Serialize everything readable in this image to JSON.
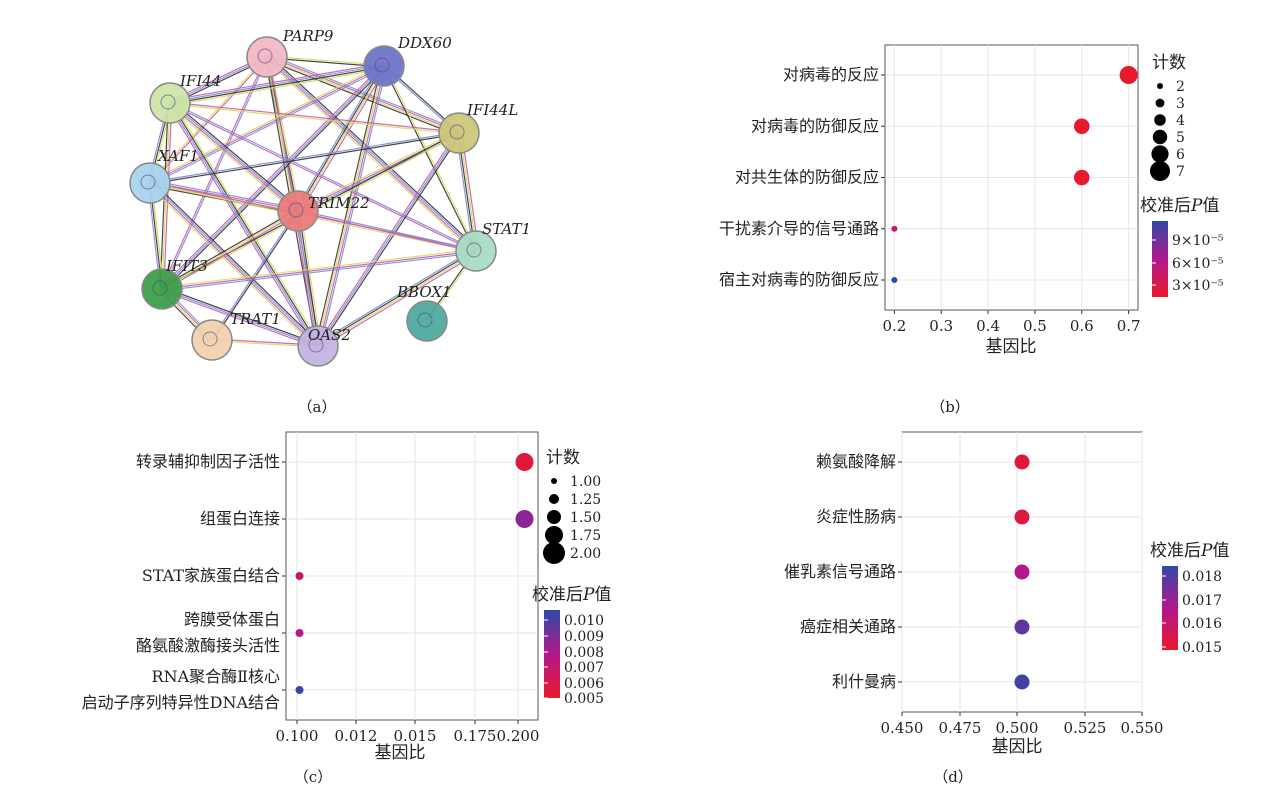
{
  "network": {
    "nodes": [
      {
        "id": "PARP9",
        "color": "#f2b8c6"
      },
      {
        "id": "DDX60",
        "color": "#6f75c9"
      },
      {
        "id": "IFI44",
        "color": "#cde5a8"
      },
      {
        "id": "IFI44L",
        "color": "#cdc77a"
      },
      {
        "id": "XAF1",
        "color": "#a9d3ee"
      },
      {
        "id": "TRIM22",
        "color": "#ec7b7b"
      },
      {
        "id": "STAT1",
        "color": "#a9dcc4"
      },
      {
        "id": "IFIT3",
        "color": "#3e9e4a"
      },
      {
        "id": "BBOX1",
        "color": "#4faaa0"
      },
      {
        "id": "TRAT1",
        "color": "#f3d1b0"
      },
      {
        "id": "OAS2",
        "color": "#c4b3e1"
      }
    ],
    "edges": [
      [
        "PARP9",
        "DDX60"
      ],
      [
        "PARP9",
        "IFI44"
      ],
      [
        "PARP9",
        "IFI44L"
      ],
      [
        "PARP9",
        "XAF1"
      ],
      [
        "PARP9",
        "TRIM22"
      ],
      [
        "PARP9",
        "STAT1"
      ],
      [
        "PARP9",
        "IFIT3"
      ],
      [
        "PARP9",
        "OAS2"
      ],
      [
        "DDX60",
        "IFI44"
      ],
      [
        "DDX60",
        "IFI44L"
      ],
      [
        "DDX60",
        "XAF1"
      ],
      [
        "DDX60",
        "TRIM22"
      ],
      [
        "DDX60",
        "STAT1"
      ],
      [
        "DDX60",
        "IFIT3"
      ],
      [
        "DDX60",
        "OAS2"
      ],
      [
        "IFI44",
        "IFI44L"
      ],
      [
        "IFI44",
        "XAF1"
      ],
      [
        "IFI44",
        "TRIM22"
      ],
      [
        "IFI44",
        "STAT1"
      ],
      [
        "IFI44",
        "IFIT3"
      ],
      [
        "IFI44",
        "OAS2"
      ],
      [
        "IFI44L",
        "XAF1"
      ],
      [
        "IFI44L",
        "TRIM22"
      ],
      [
        "IFI44L",
        "STAT1"
      ],
      [
        "IFI44L",
        "IFIT3"
      ],
      [
        "IFI44L",
        "OAS2"
      ],
      [
        "XAF1",
        "TRIM22"
      ],
      [
        "XAF1",
        "STAT1"
      ],
      [
        "XAF1",
        "IFIT3"
      ],
      [
        "XAF1",
        "OAS2"
      ],
      [
        "TRIM22",
        "STAT1"
      ],
      [
        "TRIM22",
        "IFIT3"
      ],
      [
        "TRIM22",
        "OAS2"
      ],
      [
        "TRIM22",
        "TRAT1"
      ],
      [
        "STAT1",
        "IFIT3"
      ],
      [
        "STAT1",
        "OAS2"
      ],
      [
        "STAT1",
        "BBOX1"
      ],
      [
        "IFIT3",
        "OAS2"
      ],
      [
        "IFIT3",
        "TRAT1"
      ],
      [
        "TRAT1",
        "OAS2"
      ]
    ],
    "edge_colors": [
      "#d4dc5a",
      "#333333",
      "#7a8bd8",
      "#c75bb0"
    ]
  },
  "panel_labels": [
    "（a）",
    "（b）",
    "（c）",
    "（d）"
  ],
  "chart_data": [
    {
      "panel": "b",
      "type": "scatter",
      "categories": [
        "对病毒的反应",
        "对病毒的防御反应",
        "对共生体的防御反应",
        "干扰素介导的信号通路",
        "宿主对病毒的防御反应"
      ],
      "x": [
        0.7,
        0.6,
        0.6,
        0.2,
        0.2
      ],
      "count": [
        7,
        6,
        6,
        2,
        2
      ],
      "padj": [
        1e-05,
        1e-05,
        1e-05,
        5e-05,
        0.00012
      ],
      "xlabel": "基因比",
      "xticks": [
        "0.2",
        "0.3",
        "0.4",
        "0.5",
        "0.6",
        "0.7"
      ],
      "xlim": [
        0.18,
        0.72
      ],
      "size_legend": {
        "title": "计数",
        "labels": [
          "2",
          "3",
          "4",
          "5",
          "6",
          "7"
        ]
      },
      "color_legend": {
        "title": "校准后P值",
        "labels": [
          "9×10⁻⁵",
          "6×10⁻⁵",
          "3×10⁻⁵"
        ],
        "range": [
          1e-05,
          0.00012
        ],
        "low_color": "#e8192c",
        "mid_color": "#b2188c",
        "high_color": "#2e4aa8"
      }
    },
    {
      "panel": "c",
      "type": "scatter",
      "categories": [
        "转录辅抑制因子活性",
        "组蛋白连接",
        "STAT家族蛋白结合",
        "跨膜受体蛋白\n酪氨酸激酶接头活性",
        "RNA聚合酶Ⅱ核心\n启动子序列特异性DNA结合"
      ],
      "x": [
        0.2,
        0.2,
        0.1,
        0.1,
        0.1
      ],
      "count": [
        2,
        2,
        1,
        1,
        1
      ],
      "padj": [
        0.005,
        0.0085,
        0.0065,
        0.0075,
        0.0105
      ],
      "xlabel": "基因比",
      "xticks": [
        "0.100",
        "0.012",
        "0.015",
        "0.175",
        "0.200"
      ],
      "xlim": [
        0.094,
        0.206
      ],
      "size_legend": {
        "title": "计数",
        "labels": [
          "1.00",
          "1.25",
          "1.50",
          "1.75",
          "2.00"
        ]
      },
      "color_legend": {
        "title": "校准后P值",
        "labels": [
          "0.010",
          "0.009",
          "0.008",
          "0.007",
          "0.006",
          "0.005"
        ],
        "range": [
          0.0045,
          0.0108
        ],
        "low_color": "#e8192c",
        "mid_color": "#b2188c",
        "high_color": "#2e4aa8"
      }
    },
    {
      "panel": "d",
      "type": "scatter",
      "categories": [
        "赖氨酸降解",
        "炎症性肠病",
        "催乳素信号通路",
        "癌症相关通路",
        "利什曼病"
      ],
      "x": [
        0.5,
        0.5,
        0.5,
        0.5,
        0.5
      ],
      "padj": [
        0.0149,
        0.015,
        0.0165,
        0.0178,
        0.0182
      ],
      "xlabel": "基因比",
      "xticks": [
        "0.450",
        "0.475",
        "0.500",
        "0.525",
        "0.550"
      ],
      "xlim": [
        0.45,
        0.55
      ],
      "color_legend": {
        "title": "校准后P值",
        "labels": [
          "0.018",
          "0.017",
          "0.016",
          "0.015"
        ],
        "range": [
          0.0146,
          0.0185
        ],
        "low_color": "#e8192c",
        "mid_color": "#b2188c",
        "high_color": "#2e4aa8"
      }
    }
  ]
}
